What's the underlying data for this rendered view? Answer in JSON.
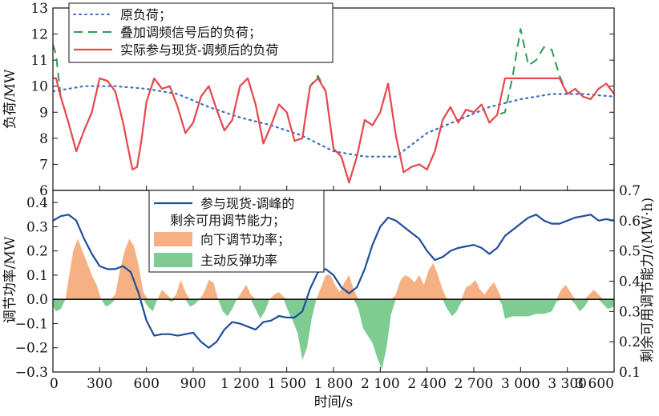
{
  "colors": {
    "original_load": "#3a6fc4",
    "superimposed_load": "#2e9a56",
    "actual_load": "#e8484f",
    "remaining_capacity": "#1f4e99",
    "down_regulation": "#f5b183",
    "active_rebound": "#7fcc93",
    "axis": "#111111"
  },
  "chart_data": [
    {
      "type": "line",
      "panel": "top",
      "xlim": [
        0,
        3600
      ],
      "ylim": [
        6,
        13
      ],
      "ylabel": "负荷/MW",
      "yticks": [
        6,
        7,
        8,
        9,
        10,
        11,
        12,
        13
      ],
      "legend_position": "top-left",
      "series": [
        {
          "name": "原负荷；",
          "style": "dotted",
          "color_key": "original_load",
          "x": [
            0,
            200,
            400,
            600,
            800,
            1000,
            1200,
            1400,
            1600,
            1800,
            2000,
            2200,
            2400,
            2600,
            2800,
            3000,
            3200,
            3400,
            3600
          ],
          "y": [
            9.8,
            10.0,
            10.0,
            9.9,
            9.7,
            9.2,
            8.8,
            8.5,
            8.1,
            7.5,
            7.3,
            7.3,
            8.2,
            8.7,
            9.2,
            9.5,
            9.7,
            9.7,
            9.6
          ]
        },
        {
          "name": "叠加调频信号后的负荷；",
          "style": "dashed",
          "color_key": "superimposed_load",
          "x": [
            0,
            20,
            50,
            100,
            150,
            200,
            250,
            300,
            350,
            400,
            450,
            480,
            510,
            540,
            570,
            600,
            650,
            700,
            750,
            800,
            850,
            900,
            950,
            1000,
            1050,
            1100,
            1150,
            1200,
            1250,
            1300,
            1350,
            1400,
            1450,
            1500,
            1550,
            1600,
            1650,
            1700,
            1750,
            1800,
            1850,
            1900,
            1950,
            2000,
            2050,
            2100,
            2150,
            2200,
            2250,
            2300,
            2350,
            2400,
            2450,
            2500,
            2550,
            2600,
            2650,
            2700,
            2750,
            2800,
            2850,
            2900,
            2950,
            3000,
            3050,
            3100,
            3150,
            3200,
            3250,
            3300,
            3350,
            3400,
            3450,
            3500,
            3550,
            3600
          ],
          "y": [
            11.6,
            11.2,
            9.6,
            8.6,
            7.5,
            8.3,
            9.0,
            10.3,
            10.2,
            9.8,
            8.6,
            7.7,
            6.8,
            6.9,
            8.0,
            9.4,
            10.3,
            9.9,
            10.0,
            9.2,
            8.2,
            8.6,
            9.6,
            10.0,
            9.1,
            8.3,
            8.7,
            10.0,
            10.3,
            9.3,
            7.8,
            8.5,
            9.3,
            9.0,
            7.9,
            8.0,
            10.0,
            10.4,
            9.8,
            7.6,
            7.3,
            6.3,
            7.3,
            8.7,
            8.5,
            9.0,
            10.1,
            8.1,
            6.7,
            6.9,
            7.0,
            6.8,
            7.5,
            8.7,
            9.2,
            8.6,
            9.1,
            9.0,
            9.3,
            8.6,
            8.9,
            9.0,
            10.4,
            12.2,
            10.8,
            11.0,
            11.5,
            11.4,
            10.4,
            9.7,
            9.9,
            9.6,
            9.5,
            9.9,
            10.1,
            9.7
          ]
        },
        {
          "name": "实际参与现货-调频后的负荷",
          "style": "solid",
          "color_key": "actual_load",
          "x": [
            0,
            20,
            50,
            100,
            150,
            200,
            250,
            300,
            350,
            400,
            450,
            480,
            510,
            540,
            570,
            600,
            650,
            700,
            750,
            800,
            850,
            900,
            950,
            1000,
            1050,
            1100,
            1150,
            1200,
            1250,
            1300,
            1350,
            1400,
            1450,
            1500,
            1550,
            1600,
            1650,
            1700,
            1750,
            1800,
            1850,
            1900,
            1950,
            2000,
            2050,
            2100,
            2150,
            2200,
            2250,
            2300,
            2350,
            2400,
            2450,
            2500,
            2550,
            2600,
            2650,
            2700,
            2750,
            2800,
            2850,
            2900,
            2950,
            3000,
            3050,
            3100,
            3150,
            3200,
            3250,
            3300,
            3350,
            3400,
            3450,
            3500,
            3550,
            3600
          ],
          "y": [
            10.3,
            10.3,
            9.6,
            8.6,
            7.5,
            8.3,
            9.0,
            10.3,
            10.2,
            9.8,
            8.6,
            7.7,
            6.8,
            6.9,
            8.0,
            9.4,
            10.3,
            9.9,
            10.0,
            9.2,
            8.2,
            8.6,
            9.6,
            10.0,
            9.1,
            8.3,
            8.7,
            10.0,
            10.3,
            9.3,
            7.8,
            8.5,
            9.3,
            9.0,
            7.9,
            8.0,
            10.0,
            10.3,
            9.8,
            7.6,
            7.3,
            6.3,
            7.3,
            8.7,
            8.5,
            9.0,
            10.1,
            8.1,
            6.7,
            6.9,
            7.0,
            6.8,
            7.5,
            8.7,
            9.2,
            8.6,
            9.1,
            9.0,
            9.3,
            8.6,
            8.9,
            10.3,
            10.3,
            10.3,
            10.3,
            10.3,
            10.3,
            10.3,
            10.3,
            9.7,
            9.9,
            9.6,
            9.5,
            9.9,
            10.1,
            9.7
          ]
        }
      ]
    },
    {
      "type": "area",
      "panel": "bottom",
      "xlim": [
        0,
        3600
      ],
      "ylim": [
        -0.3,
        0.45
      ],
      "ylabel": "调节功率/MW",
      "yticks": [
        -0.3,
        -0.2,
        -0.1,
        0.0,
        0.1,
        0.2,
        0.3,
        0.4
      ],
      "y2lim": [
        0.1,
        0.7
      ],
      "y2label": "剩余可用调节能力/(MW·h)",
      "y2ticks": [
        0.1,
        0.2,
        0.3,
        0.4,
        0.5,
        0.6,
        0.7
      ],
      "xlabel": "时间/s",
      "xticks": [
        0,
        300,
        600,
        900,
        1200,
        1500,
        1800,
        2100,
        2400,
        2700,
        3000,
        3300,
        3600
      ],
      "xtick_labels": [
        "0",
        "300",
        "600",
        "900",
        "1 200",
        "1 500",
        "1 800",
        "2 100",
        "2 400",
        "2 700",
        "3 000",
        "3 300",
        "3 600"
      ],
      "legend_position": "top-left",
      "regulation_power": {
        "x": [
          0,
          20,
          50,
          80,
          100,
          130,
          160,
          190,
          220,
          250,
          280,
          310,
          340,
          370,
          400,
          430,
          460,
          490,
          520,
          550,
          580,
          610,
          640,
          670,
          700,
          730,
          760,
          790,
          820,
          850,
          880,
          910,
          940,
          970,
          1000,
          1030,
          1060,
          1090,
          1120,
          1150,
          1180,
          1210,
          1240,
          1270,
          1300,
          1330,
          1360,
          1390,
          1420,
          1450,
          1480,
          1510,
          1540,
          1570,
          1600,
          1630,
          1660,
          1690,
          1720,
          1750,
          1780,
          1810,
          1840,
          1870,
          1900,
          1930,
          1960,
          1990,
          2020,
          2050,
          2080,
          2110,
          2140,
          2170,
          2200,
          2230,
          2260,
          2290,
          2320,
          2350,
          2380,
          2410,
          2440,
          2470,
          2500,
          2530,
          2560,
          2590,
          2620,
          2650,
          2680,
          2710,
          2740,
          2770,
          2800,
          2830,
          2860,
          2880,
          2900,
          2950,
          3000,
          3050,
          3100,
          3150,
          3200,
          3230,
          3260,
          3290,
          3320,
          3350,
          3380,
          3410,
          3440,
          3470,
          3500,
          3530,
          3560,
          3600
        ],
        "y": [
          -0.03,
          -0.05,
          -0.04,
          0.0,
          0.08,
          0.2,
          0.25,
          0.2,
          0.15,
          0.1,
          0.06,
          0.0,
          -0.03,
          -0.02,
          0.02,
          0.12,
          0.2,
          0.25,
          0.22,
          0.14,
          0.03,
          -0.03,
          -0.05,
          0.0,
          0.04,
          0.02,
          -0.01,
          0.02,
          0.08,
          0.03,
          -0.03,
          -0.02,
          0.0,
          0.03,
          0.08,
          0.07,
          0.0,
          -0.05,
          -0.07,
          -0.04,
          0.0,
          0.03,
          0.06,
          0.02,
          -0.04,
          -0.08,
          -0.05,
          0.0,
          0.02,
          0.03,
          0.01,
          -0.05,
          -0.09,
          -0.14,
          -0.25,
          -0.2,
          -0.08,
          0.0,
          0.05,
          0.1,
          0.1,
          0.06,
          0.03,
          0.07,
          0.1,
          0.04,
          -0.04,
          -0.12,
          -0.15,
          -0.18,
          -0.24,
          -0.29,
          -0.2,
          -0.06,
          0.02,
          0.08,
          0.1,
          0.09,
          0.07,
          0.1,
          0.06,
          0.12,
          0.15,
          0.1,
          0.04,
          -0.04,
          -0.07,
          -0.05,
          -0.01,
          0.05,
          0.06,
          0.08,
          0.04,
          0.02,
          0.05,
          0.07,
          0.03,
          -0.02,
          -0.08,
          -0.07,
          -0.07,
          -0.07,
          -0.06,
          -0.06,
          -0.05,
          -0.01,
          0.04,
          0.06,
          0.03,
          -0.02,
          -0.05,
          -0.03,
          0.02,
          0.04,
          0.02,
          -0.02,
          -0.04,
          -0.03
        ]
      },
      "series": [
        {
          "name": "参与现货-调峰的剩余可用调节能力；",
          "legend_lines": [
            "参与现货-调峰的",
            "剩余可用调节能力；"
          ],
          "axis": "right",
          "color_key": "remaining_capacity",
          "x": [
            0,
            50,
            100,
            150,
            200,
            250,
            300,
            350,
            400,
            450,
            500,
            550,
            600,
            650,
            700,
            750,
            800,
            850,
            900,
            950,
            1000,
            1050,
            1100,
            1150,
            1200,
            1250,
            1300,
            1350,
            1400,
            1450,
            1500,
            1550,
            1600,
            1650,
            1700,
            1750,
            1800,
            1850,
            1900,
            1950,
            2000,
            2050,
            2100,
            2150,
            2200,
            2250,
            2300,
            2350,
            2400,
            2450,
            2500,
            2550,
            2600,
            2650,
            2700,
            2750,
            2800,
            2850,
            2900,
            2950,
            3000,
            3050,
            3100,
            3150,
            3200,
            3250,
            3300,
            3350,
            3400,
            3450,
            3500,
            3550,
            3600
          ],
          "y": [
            0.6,
            0.615,
            0.62,
            0.6,
            0.54,
            0.49,
            0.45,
            0.44,
            0.44,
            0.45,
            0.43,
            0.36,
            0.27,
            0.22,
            0.225,
            0.225,
            0.22,
            0.225,
            0.23,
            0.2,
            0.18,
            0.2,
            0.24,
            0.265,
            0.26,
            0.25,
            0.24,
            0.265,
            0.27,
            0.285,
            0.28,
            0.28,
            0.3,
            0.375,
            0.43,
            0.44,
            0.42,
            0.38,
            0.36,
            0.38,
            0.44,
            0.52,
            0.58,
            0.61,
            0.6,
            0.58,
            0.56,
            0.54,
            0.5,
            0.47,
            0.48,
            0.5,
            0.51,
            0.515,
            0.52,
            0.51,
            0.49,
            0.51,
            0.55,
            0.57,
            0.59,
            0.61,
            0.62,
            0.6,
            0.59,
            0.59,
            0.6,
            0.61,
            0.615,
            0.62,
            0.6,
            0.605,
            0.6
          ]
        }
      ],
      "fill_legend": [
        {
          "name": "向下调节功率；",
          "color_key": "down_regulation"
        },
        {
          "name": "主动反弹功率",
          "color_key": "active_rebound"
        }
      ]
    }
  ]
}
